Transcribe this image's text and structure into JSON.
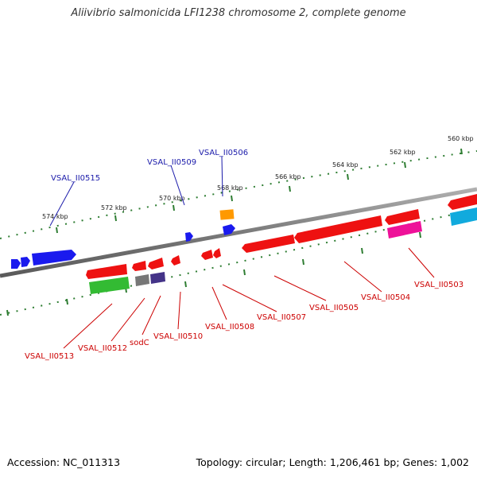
{
  "title": "Aliivibrio salmonicida LFI1238 chromosome 2, complete genome",
  "footer": {
    "accession": "Accession: NC_011313",
    "summary": "Topology: circular; Length: 1,206,461 bp; Genes: 1,002"
  },
  "colors": {
    "backbone": "#7a7a7a",
    "tick": "#2e7d32",
    "forward_label": "#1a1aaa",
    "reverse_label": "#cc0000",
    "red": "#ee1111",
    "blue": "#1a1aee",
    "green": "#33bb33",
    "gray": "#777777",
    "slate": "#443388",
    "magenta": "#ee1199",
    "cyan": "#11aadd",
    "orange": "#ff9900"
  },
  "scale": {
    "unit": "kbp",
    "ticks": [
      {
        "kbp": 574,
        "label": "574 kbp"
      },
      {
        "kbp": 572,
        "label": "572 kbp"
      },
      {
        "kbp": 570,
        "label": "570 kbp"
      },
      {
        "kbp": 568,
        "label": "568 kbp"
      },
      {
        "kbp": 566,
        "label": "566 kbp"
      },
      {
        "kbp": 564,
        "label": "564 kbp"
      },
      {
        "kbp": 562,
        "label": "562 kbp"
      },
      {
        "kbp": 560,
        "label": "560 kbp"
      }
    ]
  },
  "labels": {
    "forward": [
      "VSAL_II0515",
      "VSAL_II0509",
      "VSAL_II0506"
    ],
    "reverse": [
      "VSAL_II0513",
      "VSAL_II0512",
      "sodC",
      "VSAL_II0510",
      "VSAL_II0508",
      "VSAL_II0507",
      "VSAL_II0505",
      "VSAL_II0504",
      "VSAL_II0503"
    ]
  }
}
